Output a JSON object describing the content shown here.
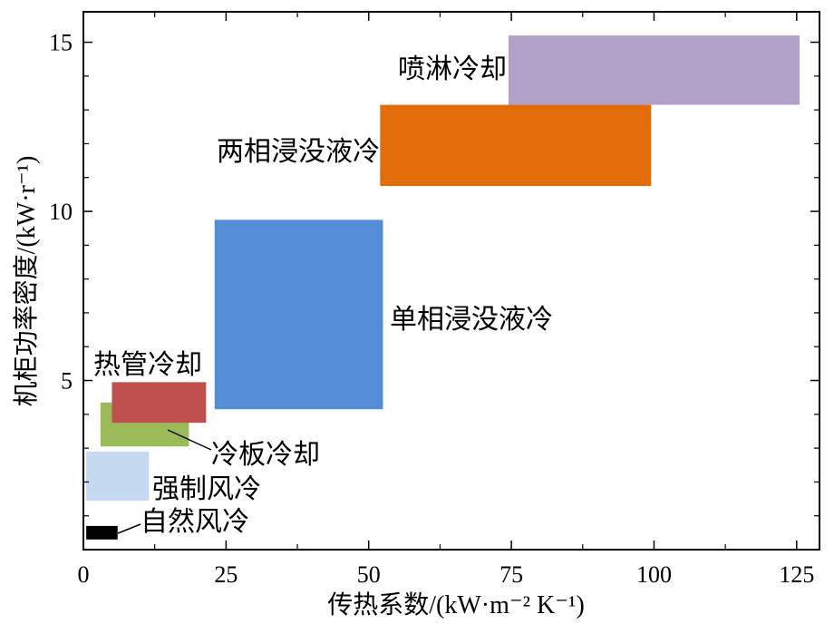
{
  "chart_data": {
    "type": "range-rectangles",
    "xlabel": "传热系数/(kW·m⁻² K⁻¹)",
    "ylabel": "机柜功率密度/(kW·r⁻¹)",
    "xlim": [
      0,
      129
    ],
    "ylim": [
      0,
      15.9
    ],
    "x_ticks": [
      0,
      25,
      50,
      75,
      100,
      125
    ],
    "y_ticks": [
      5,
      10,
      15
    ],
    "x_minor_step": 12.5,
    "y_minor_step": 1,
    "grid": false,
    "regions": [
      {
        "name": "自然风冷",
        "x": [
          0.5,
          6
        ],
        "y": [
          0.3,
          0.7
        ],
        "color": "#000000"
      },
      {
        "name": "强制风冷",
        "x": [
          0.5,
          11.5
        ],
        "y": [
          1.45,
          2.9
        ],
        "color": "#c5d9f1"
      },
      {
        "name": "冷板冷却",
        "x": [
          3,
          18.5
        ],
        "y": [
          3.05,
          4.35
        ],
        "color": "#9bbb59"
      },
      {
        "name": "热管冷却",
        "x": [
          5,
          21.5
        ],
        "y": [
          3.75,
          4.95
        ],
        "color": "#c0504d"
      },
      {
        "name": "单相浸没液冷",
        "x": [
          23,
          52.5
        ],
        "y": [
          4.15,
          9.75
        ],
        "color": "#538dd5"
      },
      {
        "name": "两相浸没液冷",
        "x": [
          52,
          99.5
        ],
        "y": [
          10.75,
          13.15
        ],
        "color": "#e26b0a"
      },
      {
        "name": "喷淋冷却",
        "x": [
          74.5,
          125.5
        ],
        "y": [
          13.15,
          15.2
        ],
        "color": "#b1a0c7"
      }
    ]
  }
}
